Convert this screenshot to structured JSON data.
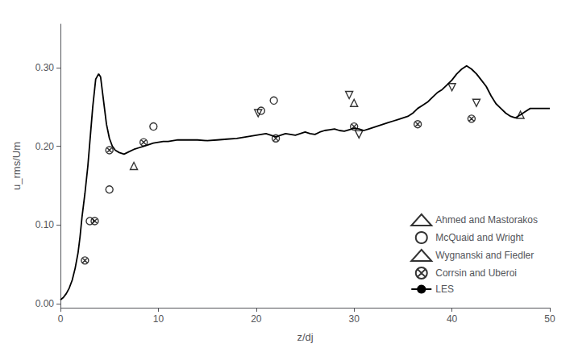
{
  "chart_data": {
    "type": "scatter",
    "xlabel": "z/dj",
    "ylabel": "u_rms/Um",
    "xlim": [
      0,
      50
    ],
    "ylim": [
      -0.005,
      0.355
    ],
    "xticks": [
      0,
      10,
      20,
      30,
      40,
      50
    ],
    "yticks": [
      {
        "value": 0.0,
        "label": "0.00"
      },
      {
        "value": 0.1,
        "label": "0.10"
      },
      {
        "value": 0.2,
        "label": "0.20"
      },
      {
        "value": 0.3,
        "label": "0.30"
      }
    ],
    "grid": false,
    "legend": "lower right",
    "series": [
      {
        "name": "Ahmed and Mastorakos",
        "type": "scatter",
        "marker": "triangle-up",
        "color": "black",
        "x": [
          7.5,
          30.0,
          47.0
        ],
        "values": [
          0.175,
          0.255,
          0.24
        ]
      },
      {
        "name": "McQuaid and Wright",
        "type": "scatter",
        "marker": "circle",
        "color": "black",
        "x": [
          3.0,
          5.0,
          9.5,
          20.5,
          21.8
        ],
        "values": [
          0.105,
          0.145,
          0.225,
          0.245,
          0.258
        ]
      },
      {
        "name": "Wygnanski and Fiedler",
        "type": "scatter",
        "marker": "triangle-down",
        "color": "black",
        "x": [
          20.2,
          29.5,
          30.5,
          40.0,
          42.5
        ],
        "values": [
          0.242,
          0.265,
          0.215,
          0.275,
          0.255
        ]
      },
      {
        "name": "Corrsin and Uberoi",
        "type": "scatter",
        "marker": "circle-x",
        "color": "black",
        "x": [
          2.5,
          3.5,
          5.0,
          8.5,
          22.0,
          30.0,
          36.5,
          42.0
        ],
        "values": [
          0.055,
          0.105,
          0.195,
          0.205,
          0.21,
          0.225,
          0.228,
          0.235
        ]
      },
      {
        "name": "LES",
        "type": "line",
        "line_style": "solid",
        "color": "black",
        "x": [
          0.0,
          0.3,
          0.6,
          0.9,
          1.2,
          1.5,
          1.8,
          2.0,
          2.2,
          2.5,
          2.8,
          3.0,
          3.3,
          3.6,
          3.9,
          4.1,
          4.3,
          4.5,
          4.7,
          5.0,
          5.3,
          5.6,
          6.0,
          6.5,
          7.0,
          7.5,
          8.0,
          8.5,
          9.0,
          9.5,
          10.0,
          10.5,
          11.0,
          11.5,
          12.0,
          13.0,
          14.0,
          15.0,
          16.0,
          17.0,
          18.0,
          19.0,
          20.0,
          20.5,
          21.0,
          21.5,
          22.0,
          22.5,
          23.0,
          23.5,
          24.0,
          24.5,
          25.0,
          25.5,
          26.0,
          26.5,
          27.0,
          27.5,
          28.0,
          28.5,
          29.0,
          29.5,
          30.0,
          30.5,
          31.0,
          31.5,
          32.0,
          32.5,
          33.0,
          33.5,
          34.0,
          34.5,
          35.0,
          35.5,
          36.0,
          36.5,
          37.0,
          37.5,
          38.0,
          38.5,
          39.0,
          39.5,
          40.0,
          40.5,
          41.0,
          41.5,
          42.0,
          42.5,
          43.0,
          43.5,
          44.0,
          44.5,
          45.0,
          45.5,
          46.0,
          46.5,
          47.0,
          47.5,
          48.0,
          49.0,
          50.0
        ],
        "values": [
          0.005,
          0.008,
          0.013,
          0.02,
          0.03,
          0.045,
          0.065,
          0.085,
          0.11,
          0.14,
          0.175,
          0.205,
          0.25,
          0.285,
          0.292,
          0.288,
          0.268,
          0.248,
          0.228,
          0.21,
          0.2,
          0.195,
          0.192,
          0.19,
          0.193,
          0.196,
          0.198,
          0.2,
          0.202,
          0.204,
          0.205,
          0.206,
          0.206,
          0.207,
          0.208,
          0.208,
          0.208,
          0.207,
          0.208,
          0.209,
          0.21,
          0.212,
          0.214,
          0.215,
          0.216,
          0.214,
          0.212,
          0.214,
          0.216,
          0.215,
          0.214,
          0.216,
          0.218,
          0.216,
          0.215,
          0.218,
          0.22,
          0.221,
          0.222,
          0.22,
          0.219,
          0.221,
          0.223,
          0.222,
          0.22,
          0.222,
          0.224,
          0.226,
          0.228,
          0.23,
          0.232,
          0.234,
          0.236,
          0.238,
          0.242,
          0.248,
          0.252,
          0.256,
          0.262,
          0.268,
          0.272,
          0.278,
          0.284,
          0.292,
          0.298,
          0.302,
          0.298,
          0.292,
          0.284,
          0.276,
          0.264,
          0.254,
          0.248,
          0.242,
          0.238,
          0.236,
          0.24,
          0.244,
          0.248,
          0.248,
          0.248
        ]
      }
    ]
  }
}
